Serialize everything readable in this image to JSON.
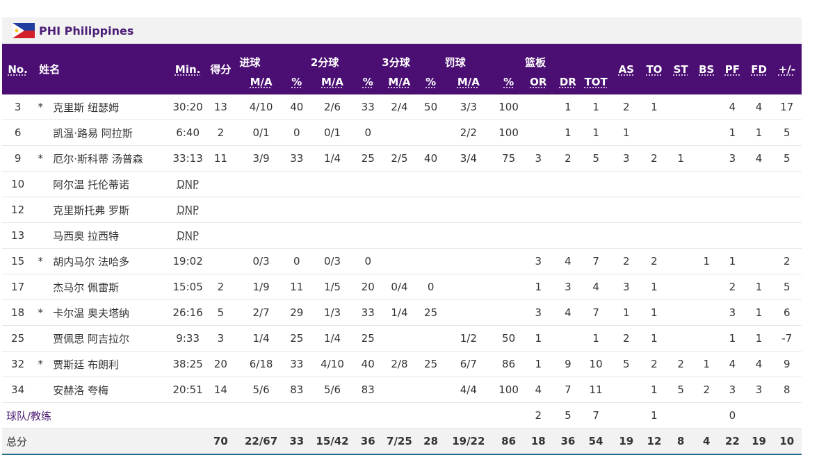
{
  "team": {
    "code_name": "PHI Philippines"
  },
  "header": {
    "no": "No.",
    "name": "姓名",
    "min": "Min.",
    "pts": "得分",
    "fg": "进球",
    "fg2": "2分球",
    "fg3": "3分球",
    "ft": "罚球",
    "reb": "篮板",
    "ma": "M/A",
    "pct": "%",
    "or": "OR",
    "dr": "DR",
    "tot": "TOT",
    "as": "AS",
    "to": "TO",
    "st": "ST",
    "bs": "BS",
    "pf": "PF",
    "fd": "FD",
    "pm": "+/-"
  },
  "players": [
    {
      "no": "3",
      "star": "*",
      "name": "克里斯 纽瑟姆",
      "min": "30:20",
      "pts": "13",
      "fg_ma": "4/10",
      "fg_pct": "40",
      "fg2_ma": "2/6",
      "fg2_pct": "33",
      "fg3_ma": "2/4",
      "fg3_pct": "50",
      "ft_ma": "3/3",
      "ft_pct": "100",
      "or": "",
      "dr": "1",
      "tot": "1",
      "as": "2",
      "to": "1",
      "st": "",
      "bs": "",
      "pf": "4",
      "fd": "4",
      "pm": "17"
    },
    {
      "no": "6",
      "star": "",
      "name": "凯温·路易 阿拉斯",
      "min": "6:40",
      "pts": "2",
      "fg_ma": "0/1",
      "fg_pct": "0",
      "fg2_ma": "0/1",
      "fg2_pct": "0",
      "fg3_ma": "",
      "fg3_pct": "",
      "ft_ma": "2/2",
      "ft_pct": "100",
      "or": "",
      "dr": "1",
      "tot": "1",
      "as": "1",
      "to": "",
      "st": "",
      "bs": "",
      "pf": "1",
      "fd": "1",
      "pm": "5"
    },
    {
      "no": "9",
      "star": "*",
      "name": "厄尔·斯科蒂 汤普森",
      "min": "33:13",
      "pts": "11",
      "fg_ma": "3/9",
      "fg_pct": "33",
      "fg2_ma": "1/4",
      "fg2_pct": "25",
      "fg3_ma": "2/5",
      "fg3_pct": "40",
      "ft_ma": "3/4",
      "ft_pct": "75",
      "or": "3",
      "dr": "2",
      "tot": "5",
      "as": "3",
      "to": "2",
      "st": "1",
      "bs": "",
      "pf": "3",
      "fd": "4",
      "pm": "5"
    },
    {
      "no": "10",
      "star": "",
      "name": "阿尔温 托伦蒂诺",
      "dnp": "DNP"
    },
    {
      "no": "12",
      "star": "",
      "name": "克里斯托弗 罗斯",
      "dnp": "DNP"
    },
    {
      "no": "13",
      "star": "",
      "name": "马西奥 拉西特",
      "dnp": "DNP"
    },
    {
      "no": "15",
      "star": "*",
      "name": "胡内马尔 法哈多",
      "min": "19:02",
      "pts": "",
      "fg_ma": "0/3",
      "fg_pct": "0",
      "fg2_ma": "0/3",
      "fg2_pct": "0",
      "fg3_ma": "",
      "fg3_pct": "",
      "ft_ma": "",
      "ft_pct": "",
      "or": "3",
      "dr": "4",
      "tot": "7",
      "as": "2",
      "to": "2",
      "st": "",
      "bs": "1",
      "pf": "1",
      "fd": "",
      "pm": "2"
    },
    {
      "no": "17",
      "star": "",
      "name": "杰马尔 佩雷斯",
      "min": "15:05",
      "pts": "2",
      "fg_ma": "1/9",
      "fg_pct": "11",
      "fg2_ma": "1/5",
      "fg2_pct": "20",
      "fg3_ma": "0/4",
      "fg3_pct": "0",
      "ft_ma": "",
      "ft_pct": "",
      "or": "1",
      "dr": "3",
      "tot": "4",
      "as": "3",
      "to": "1",
      "st": "",
      "bs": "",
      "pf": "2",
      "fd": "1",
      "pm": "5"
    },
    {
      "no": "18",
      "star": "*",
      "name": "卡尔温 奥夫塔纳",
      "min": "26:16",
      "pts": "5",
      "fg_ma": "2/7",
      "fg_pct": "29",
      "fg2_ma": "1/3",
      "fg2_pct": "33",
      "fg3_ma": "1/4",
      "fg3_pct": "25",
      "ft_ma": "",
      "ft_pct": "",
      "or": "3",
      "dr": "4",
      "tot": "7",
      "as": "1",
      "to": "1",
      "st": "",
      "bs": "",
      "pf": "3",
      "fd": "1",
      "pm": "6"
    },
    {
      "no": "25",
      "star": "",
      "name": "贾佩思 阿吉拉尔",
      "min": "9:33",
      "pts": "3",
      "fg_ma": "1/4",
      "fg_pct": "25",
      "fg2_ma": "1/4",
      "fg2_pct": "25",
      "fg3_ma": "",
      "fg3_pct": "",
      "ft_ma": "1/2",
      "ft_pct": "50",
      "or": "1",
      "dr": "",
      "tot": "1",
      "as": "2",
      "to": "1",
      "st": "",
      "bs": "",
      "pf": "1",
      "fd": "1",
      "pm": "-7"
    },
    {
      "no": "32",
      "star": "*",
      "name": "贾斯廷 布朗利",
      "min": "38:25",
      "pts": "20",
      "fg_ma": "6/18",
      "fg_pct": "33",
      "fg2_ma": "4/10",
      "fg2_pct": "40",
      "fg3_ma": "2/8",
      "fg3_pct": "25",
      "ft_ma": "6/7",
      "ft_pct": "86",
      "or": "1",
      "dr": "9",
      "tot": "10",
      "as": "5",
      "to": "2",
      "st": "2",
      "bs": "1",
      "pf": "4",
      "fd": "4",
      "pm": "9"
    },
    {
      "no": "34",
      "star": "",
      "name": "安赫洛 夸梅",
      "min": "20:51",
      "pts": "14",
      "fg_ma": "5/6",
      "fg_pct": "83",
      "fg2_ma": "5/6",
      "fg2_pct": "83",
      "fg3_ma": "",
      "fg3_pct": "",
      "ft_ma": "4/4",
      "ft_pct": "100",
      "or": "4",
      "dr": "7",
      "tot": "11",
      "as": "",
      "to": "1",
      "st": "5",
      "bs": "2",
      "pf": "3",
      "fd": "3",
      "pm": "8"
    }
  ],
  "team_row": {
    "label": "球队/教练",
    "or": "2",
    "dr": "5",
    "tot": "7",
    "to": "1",
    "pf": "0"
  },
  "totals": {
    "label": "总分",
    "pts": "70",
    "fg_ma": "22/67",
    "fg_pct": "33",
    "fg2_ma": "15/42",
    "fg2_pct": "36",
    "fg3_ma": "7/25",
    "fg3_pct": "28",
    "ft_ma": "19/22",
    "ft_pct": "86",
    "or": "18",
    "dr": "36",
    "tot": "54",
    "as": "19",
    "to": "12",
    "st": "8",
    "bs": "4",
    "pf": "22",
    "fd": "19",
    "pm": "10"
  },
  "colors": {
    "header_bg": "#4b0f73",
    "team_text": "#4b1e74",
    "stripe": "#f2f2f2"
  },
  "icons": {
    "flag": "philippines-flag-icon"
  }
}
